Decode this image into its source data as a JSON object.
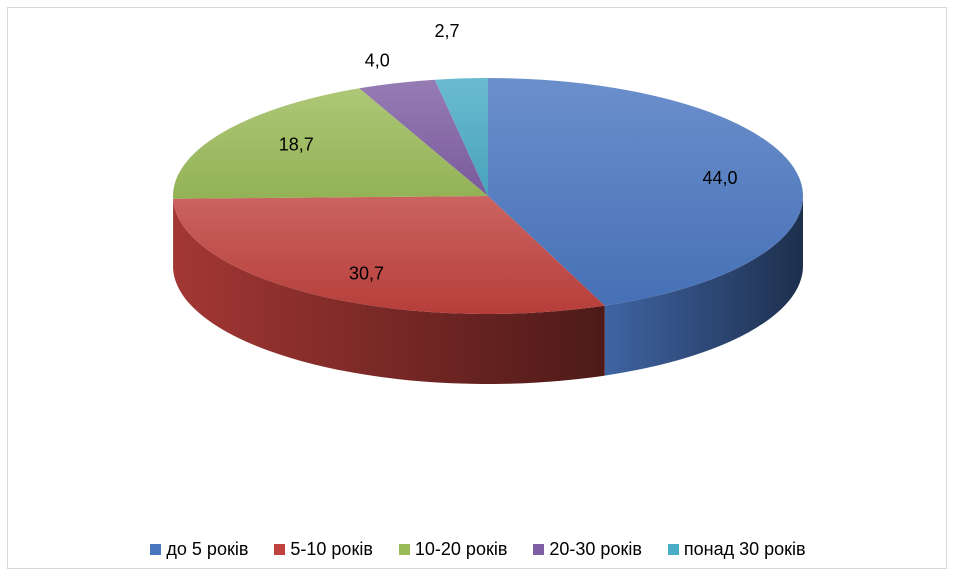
{
  "chart_data": {
    "type": "pie",
    "style": "3d",
    "categories": [
      "до 5 років",
      "5-10 років",
      "10-20 років",
      "20-30 років",
      "понад 30 років"
    ],
    "values": [
      44.0,
      30.7,
      18.7,
      4.0,
      2.7
    ],
    "value_labels": [
      "44,0",
      "30,7",
      "18,7",
      "4,0",
      "2,7"
    ],
    "colors": [
      "#4a76c0",
      "#c0413d",
      "#9bbb59",
      "#7f5fa3",
      "#4bacc6"
    ],
    "legend_position": "bottom",
    "title": ""
  }
}
